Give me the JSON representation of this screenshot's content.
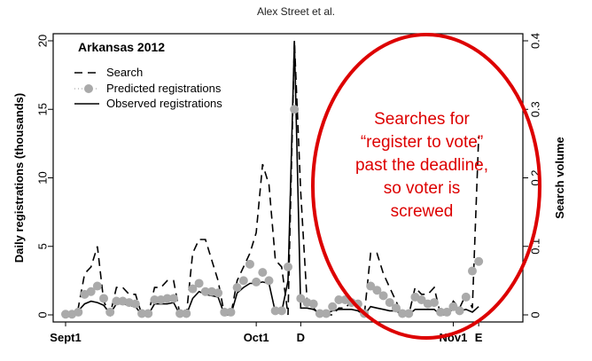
{
  "header": {
    "author": "Alex Street et al."
  },
  "chart_data": {
    "type": "line",
    "title": "Arkansas 2012",
    "ylabel": "Daily registrations (thousands)",
    "y2label": "Search volume",
    "ylim": [
      0,
      20
    ],
    "y2lim": [
      0,
      0.4
    ],
    "yticks": [
      0,
      5,
      10,
      15,
      20
    ],
    "y2ticks": [
      0,
      0.1,
      0.2,
      0.3,
      0.4
    ],
    "y2ticklabels": [
      "0",
      "0.1",
      "0.2",
      "0.3",
      "0.4"
    ],
    "xlim": [
      1,
      71
    ],
    "xticks": [
      {
        "x": 1,
        "label": "Sept1"
      },
      {
        "x": 31,
        "label": "Oct1"
      },
      {
        "x": 38,
        "label": "D"
      },
      {
        "x": 62,
        "label": "Nov1"
      },
      {
        "x": 66,
        "label": "E"
      }
    ],
    "legend_position": "top-left",
    "legend": [
      {
        "label": "Search",
        "style": "dashed"
      },
      {
        "label": "Predicted registrations",
        "style": "points"
      },
      {
        "label": "Observed registrations",
        "style": "solid"
      }
    ],
    "colors": {
      "search": "#000000",
      "predicted": "#aaaaaa",
      "observed": "#000000",
      "annotation": "#dd0000"
    },
    "series": [
      {
        "name": "Search",
        "axis": "right",
        "x": [
          1,
          2,
          3,
          4,
          5,
          6,
          7,
          8,
          9,
          10,
          11,
          12,
          13,
          14,
          15,
          16,
          17,
          18,
          19,
          20,
          21,
          22,
          23,
          24,
          25,
          26,
          27,
          28,
          29,
          30,
          31,
          32,
          33,
          34,
          35,
          36,
          37,
          38,
          39,
          40,
          41,
          42,
          43,
          44,
          45,
          46,
          47,
          48,
          49,
          50,
          51,
          52,
          53,
          54,
          55,
          56,
          57,
          58,
          59,
          60,
          61,
          62,
          63,
          64,
          65,
          66
        ],
        "values": [
          0,
          0,
          0.01,
          0.06,
          0.07,
          0.1,
          0.02,
          0,
          0.04,
          0.04,
          0.03,
          0.03,
          0,
          0,
          0.04,
          0.04,
          0.05,
          0.05,
          0,
          0,
          0.09,
          0.11,
          0.11,
          0.08,
          0.05,
          0,
          0,
          0.05,
          0.07,
          0.09,
          0.12,
          0.22,
          0.19,
          0.08,
          0.07,
          0,
          0.4,
          0.18,
          0.02,
          0.01,
          0,
          0,
          0,
          0.01,
          0.01,
          0.02,
          0.01,
          0,
          0.09,
          0.09,
          0.06,
          0.04,
          0.02,
          0,
          0,
          0.04,
          0.03,
          0.03,
          0.04,
          0,
          0,
          0.02,
          0.01,
          0.03,
          0.01,
          0.26
        ]
      },
      {
        "name": "Predicted registrations",
        "axis": "left",
        "x": [
          1,
          2,
          3,
          4,
          5,
          6,
          7,
          8,
          9,
          10,
          11,
          12,
          13,
          14,
          15,
          16,
          17,
          18,
          19,
          20,
          21,
          22,
          23,
          24,
          25,
          26,
          27,
          28,
          29,
          30,
          31,
          32,
          33,
          34,
          35,
          36,
          37,
          38,
          39,
          40,
          41,
          42,
          43,
          44,
          45,
          46,
          47,
          48,
          49,
          50,
          51,
          52,
          53,
          54,
          55,
          56,
          57,
          58,
          59,
          60,
          61,
          62,
          63,
          64,
          65,
          66
        ],
        "values": [
          0.05,
          0.05,
          0.2,
          1.5,
          1.7,
          2.1,
          1.2,
          0.2,
          1.0,
          1.0,
          0.9,
          0.8,
          0.1,
          0.1,
          1.1,
          1.1,
          1.2,
          1.2,
          0.1,
          0.1,
          1.9,
          2.3,
          1.7,
          1.7,
          1.6,
          0.2,
          0.2,
          2.0,
          2.5,
          3.7,
          2.4,
          3.1,
          2.5,
          0.3,
          0.3,
          3.5,
          15.0,
          1.2,
          0.9,
          0.8,
          0.1,
          0.1,
          0.6,
          1.1,
          1.1,
          0.9,
          0.8,
          0.1,
          2.1,
          1.8,
          1.4,
          0.9,
          0.5,
          0.1,
          0.1,
          1.3,
          1.1,
          0.8,
          0.9,
          0.2,
          0.2,
          0.6,
          0.3,
          1.3,
          3.2,
          3.9
        ]
      },
      {
        "name": "Observed registrations",
        "axis": "left",
        "x": [
          1,
          2,
          3,
          4,
          5,
          6,
          7,
          8,
          9,
          10,
          11,
          12,
          13,
          14,
          15,
          16,
          17,
          18,
          19,
          20,
          21,
          22,
          23,
          24,
          25,
          26,
          27,
          28,
          29,
          30,
          31,
          32,
          33,
          34,
          35,
          36,
          37,
          38,
          39,
          40,
          41,
          42,
          43,
          44,
          45,
          46,
          47,
          48,
          49,
          50,
          51,
          52,
          53,
          54,
          55,
          56,
          57,
          58,
          59,
          60,
          61,
          62,
          63,
          64,
          65,
          66
        ],
        "values": [
          0,
          0,
          0.3,
          0.8,
          1.0,
          0.9,
          0.7,
          0.1,
          0.8,
          0.8,
          0.7,
          0.6,
          0,
          0,
          0.8,
          0.8,
          0.8,
          0.9,
          0,
          0,
          1.2,
          1.7,
          1.5,
          1.4,
          1.3,
          0,
          0,
          1.6,
          2.0,
          2.3,
          2.3,
          2.4,
          2.3,
          0.2,
          0.2,
          2.5,
          20.0,
          0.5,
          0.5,
          0.4,
          0.1,
          0.1,
          0.3,
          0.4,
          0.4,
          0.4,
          0.3,
          0,
          0.6,
          0.5,
          0.4,
          0.3,
          0.3,
          0,
          0,
          0.4,
          0.4,
          0.4,
          0.4,
          0,
          0,
          0.5,
          0.3,
          0.4,
          0.2,
          0.6
        ]
      }
    ],
    "annotation": {
      "lines": [
        "Searches for",
        "“register to vote”",
        "past the deadline,",
        "so voter is",
        "screwed"
      ]
    }
  }
}
